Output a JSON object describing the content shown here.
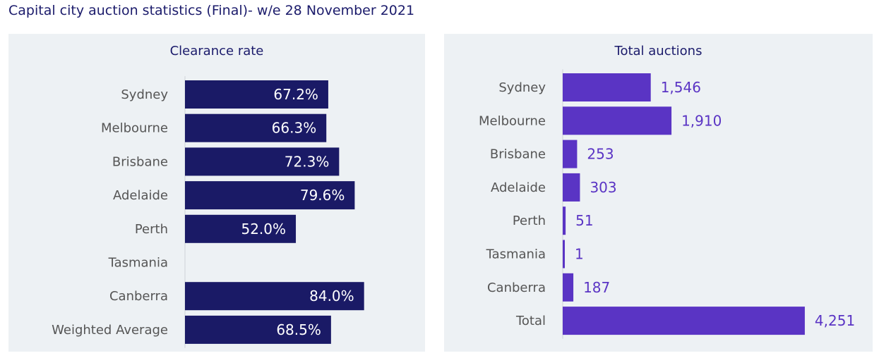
{
  "page": {
    "title": "Capital city auction statistics (Final)- w/e 28 November 2021"
  },
  "colors": {
    "clearance_bar": "#1a1a66",
    "auctions_bar": "#5a34c4",
    "panel_bg": "#edf1f4",
    "axis": "#cfd4d8"
  },
  "chart_data": [
    {
      "type": "bar",
      "orientation": "horizontal",
      "title": "Clearance rate",
      "categories": [
        "Sydney",
        "Melbourne",
        "Brisbane",
        "Adelaide",
        "Perth",
        "Tasmania",
        "Canberra",
        "Weighted Average"
      ],
      "values": [
        67.2,
        66.3,
        72.3,
        79.6,
        52.0,
        null,
        84.0,
        68.5
      ],
      "labels": [
        "67.2%",
        "66.3%",
        "72.3%",
        "79.6%",
        "52.0%",
        "",
        "84.0%",
        "68.5%"
      ],
      "xlim": [
        0,
        100
      ],
      "grid": false,
      "label_position": "inside-end"
    },
    {
      "type": "bar",
      "orientation": "horizontal",
      "title": "Total auctions",
      "categories": [
        "Sydney",
        "Melbourne",
        "Brisbane",
        "Adelaide",
        "Perth",
        "Tasmania",
        "Canberra",
        "Total"
      ],
      "values": [
        1546,
        1910,
        253,
        303,
        51,
        1,
        187,
        4251
      ],
      "labels": [
        "1,546",
        "1,910",
        "253",
        "303",
        "51",
        "1",
        "187",
        "4,251"
      ],
      "xlim": [
        0,
        4500
      ],
      "grid": false,
      "label_position": "outside-end"
    }
  ]
}
